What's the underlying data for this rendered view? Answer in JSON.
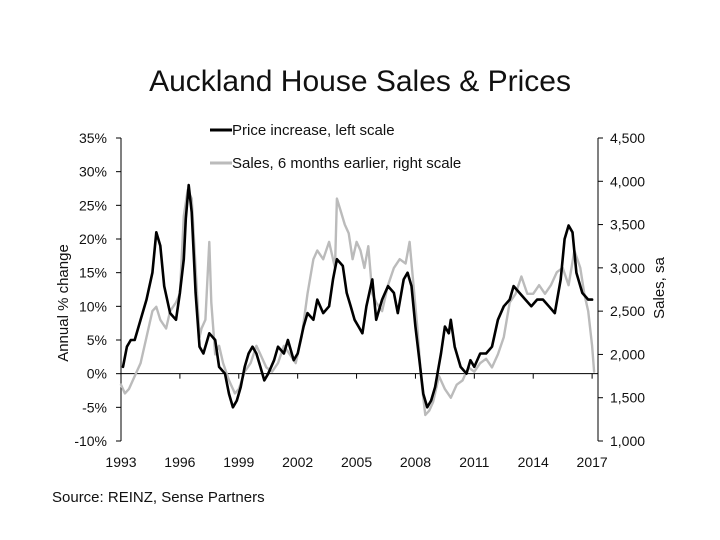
{
  "chart_data": {
    "type": "line",
    "title": "Auckland House Sales & Prices",
    "source": "Source: REINZ, Sense Partners",
    "ylabel_left": "Annual % change",
    "ylabel_right": "Sales, sa",
    "xlim": [
      1993,
      2017.3
    ],
    "ylim_left": [
      -10,
      35
    ],
    "ylim_right": [
      1000,
      4500
    ],
    "x_ticks": [
      1993,
      1996,
      1999,
      2002,
      2005,
      2008,
      2011,
      2014,
      2017
    ],
    "x_tick_labels": [
      "1993",
      "1996",
      "1999",
      "2002",
      "2005",
      "2008",
      "2011",
      "2014",
      "2017"
    ],
    "y_left_ticks": [
      -10,
      -5,
      0,
      5,
      10,
      15,
      20,
      25,
      30,
      35
    ],
    "y_left_tick_labels": [
      "-10%",
      "-5%",
      "0%",
      "5%",
      "10%",
      "15%",
      "20%",
      "25%",
      "30%",
      "35%"
    ],
    "y_right_ticks": [
      1000,
      1500,
      2000,
      2500,
      3000,
      3500,
      4000,
      4500
    ],
    "y_right_tick_labels": [
      "1,000",
      "1,500",
      "2,000",
      "2,500",
      "3,000",
      "3,500",
      "4,000",
      "4,500"
    ],
    "series": [
      {
        "name": "Price increase, left scale",
        "axis": "left",
        "color": "#000000",
        "x": [
          1993.1,
          1993.3,
          1993.5,
          1993.7,
          1994.0,
          1994.3,
          1994.6,
          1994.8,
          1995.0,
          1995.2,
          1995.5,
          1995.8,
          1996.0,
          1996.2,
          1996.3,
          1996.45,
          1996.6,
          1996.8,
          1997.0,
          1997.2,
          1997.5,
          1997.8,
          1998.0,
          1998.3,
          1998.5,
          1998.7,
          1998.9,
          1999.1,
          1999.3,
          1999.5,
          1999.7,
          1999.9,
          2000.1,
          2000.3,
          2000.5,
          2000.8,
          2001.0,
          2001.3,
          2001.5,
          2001.8,
          2002.0,
          2002.3,
          2002.5,
          2002.8,
          2003.0,
          2003.3,
          2003.6,
          2003.8,
          2004.0,
          2004.3,
          2004.5,
          2004.7,
          2004.9,
          2005.1,
          2005.3,
          2005.5,
          2005.8,
          2006.0,
          2006.3,
          2006.6,
          2006.9,
          2007.1,
          2007.4,
          2007.6,
          2007.8,
          2008.0,
          2008.2,
          2008.4,
          2008.6,
          2008.8,
          2009.0,
          2009.3,
          2009.5,
          2009.7,
          2009.8,
          2010.0,
          2010.3,
          2010.6,
          2010.8,
          2011.0,
          2011.3,
          2011.6,
          2011.9,
          2012.2,
          2012.5,
          2012.8,
          2013.0,
          2013.3,
          2013.6,
          2013.9,
          2014.2,
          2014.5,
          2014.8,
          2015.1,
          2015.4,
          2015.6,
          2015.8,
          2016.0,
          2016.2,
          2016.5,
          2016.8,
          2017.0
        ],
        "values": [
          1,
          4,
          5,
          5,
          8,
          11,
          15,
          21,
          19,
          13,
          9,
          8,
          12,
          17,
          23,
          28,
          24,
          12,
          4,
          3,
          6,
          5,
          1,
          0,
          -3,
          -5,
          -4,
          -2,
          1,
          3,
          4,
          3,
          1,
          -1,
          0,
          2,
          4,
          3,
          5,
          2,
          3,
          7,
          9,
          8,
          11,
          9,
          10,
          14,
          17,
          16,
          12,
          10,
          8,
          7,
          6,
          10,
          14,
          8,
          11,
          13,
          12,
          9,
          14,
          15,
          13,
          7,
          2,
          -3,
          -5,
          -4,
          -2,
          3,
          7,
          6,
          8,
          4,
          1,
          0,
          2,
          1,
          3,
          3,
          4,
          8,
          10,
          11,
          13,
          12,
          11,
          10,
          11,
          11,
          10,
          9,
          14,
          20,
          22,
          21,
          15,
          12,
          11,
          11
        ]
      },
      {
        "name": "Sales, 6 months earlier, right scale",
        "axis": "right",
        "color": "#bbbbbb",
        "x": [
          1993.0,
          1993.2,
          1993.4,
          1993.6,
          1993.8,
          1994.0,
          1994.3,
          1994.6,
          1994.8,
          1995.0,
          1995.3,
          1995.5,
          1995.8,
          1996.0,
          1996.2,
          1996.4,
          1996.6,
          1996.8,
          1997.0,
          1997.1,
          1997.3,
          1997.5,
          1997.6,
          1997.8,
          1998.0,
          1998.2,
          1998.5,
          1998.8,
          1999.0,
          1999.3,
          1999.6,
          1999.9,
          2000.1,
          2000.4,
          2000.7,
          2001.0,
          2001.3,
          2001.6,
          2001.9,
          2002.2,
          2002.5,
          2002.8,
          2003.0,
          2003.3,
          2003.6,
          2003.9,
          2004.0,
          2004.2,
          2004.4,
          2004.6,
          2004.8,
          2005.0,
          2005.2,
          2005.4,
          2005.6,
          2005.8,
          2006.0,
          2006.3,
          2006.6,
          2006.9,
          2007.2,
          2007.5,
          2007.7,
          2007.9,
          2008.1,
          2008.3,
          2008.5,
          2008.7,
          2008.9,
          2009.2,
          2009.5,
          2009.8,
          2010.1,
          2010.4,
          2010.7,
          2011.0,
          2011.3,
          2011.6,
          2011.9,
          2012.2,
          2012.5,
          2012.8,
          2013.1,
          2013.4,
          2013.7,
          2014.0,
          2014.3,
          2014.6,
          2014.9,
          2015.2,
          2015.5,
          2015.8,
          2016.1,
          2016.4,
          2016.6,
          2016.8,
          2017.0,
          2017.1
        ],
        "values": [
          1650,
          1550,
          1600,
          1700,
          1800,
          1900,
          2200,
          2500,
          2550,
          2400,
          2300,
          2500,
          2600,
          2700,
          3600,
          3900,
          3800,
          3000,
          2200,
          2300,
          2400,
          3300,
          2600,
          2000,
          2100,
          1900,
          1700,
          1550,
          1600,
          1800,
          1900,
          2100,
          2000,
          1850,
          1800,
          1900,
          2100,
          2000,
          1900,
          2200,
          2700,
          3100,
          3200,
          3100,
          3300,
          3000,
          3800,
          3650,
          3500,
          3400,
          3100,
          3300,
          3200,
          3000,
          3250,
          2700,
          2600,
          2500,
          2800,
          3000,
          3100,
          3050,
          3300,
          2800,
          2300,
          1700,
          1300,
          1350,
          1450,
          1750,
          1600,
          1500,
          1650,
          1700,
          1850,
          1800,
          1900,
          1950,
          1850,
          2000,
          2200,
          2600,
          2700,
          2900,
          2700,
          2700,
          2800,
          2700,
          2800,
          2950,
          3000,
          2800,
          3200,
          3000,
          2700,
          2500,
          2100,
          1800
        ]
      }
    ],
    "zero_line": 0,
    "legend_position": "top-center"
  }
}
